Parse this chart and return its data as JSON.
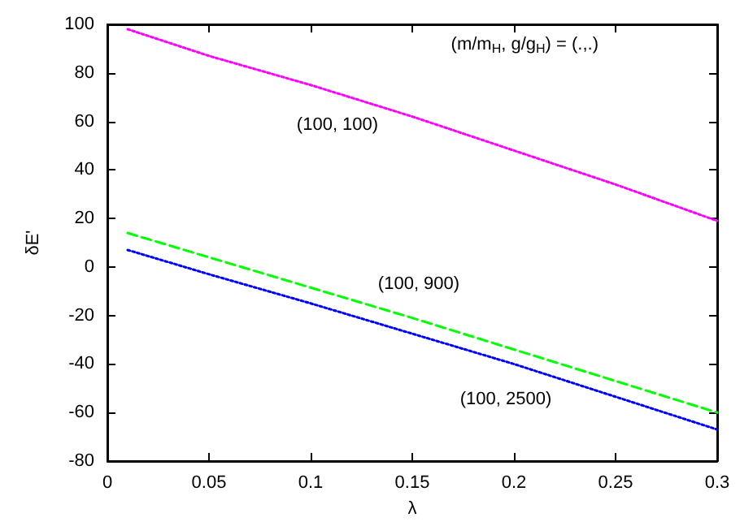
{
  "chart_data": {
    "type": "line",
    "xlabel": "λ",
    "ylabel": "δE'",
    "annotations": [
      "(m/m$_{H}$, g/g$_{H}$) = (.,.)"
    ],
    "x": [
      0.01,
      0.05,
      0.1,
      0.15,
      0.2,
      0.25,
      0.3
    ],
    "series": [
      {
        "name": "(100, 100)",
        "color": "#ff00ff",
        "line_style": "dotted",
        "values": [
          98,
          87,
          75,
          62,
          48,
          34,
          19
        ]
      },
      {
        "name": "(100, 900)",
        "color": "#00ff00",
        "line_style": "dashed",
        "values": [
          14,
          4,
          -8.5,
          -21,
          -34,
          -47,
          -60
        ]
      },
      {
        "name": "(100, 2500)",
        "color": "#0000ff",
        "line_style": "dotted",
        "values": [
          7,
          -3,
          -15,
          -27.5,
          -40,
          -53.5,
          -67
        ]
      }
    ],
    "xlim": [
      0,
      0.3
    ],
    "xticks": [
      0,
      0.05,
      0.1,
      0.15,
      0.2,
      0.25,
      0.3
    ],
    "ylim": [
      -80,
      100
    ],
    "yticks": [
      -80,
      -60,
      -40,
      -20,
      0,
      20,
      40,
      60,
      80,
      100
    ],
    "grid": false,
    "legend": false,
    "marker": "none"
  }
}
